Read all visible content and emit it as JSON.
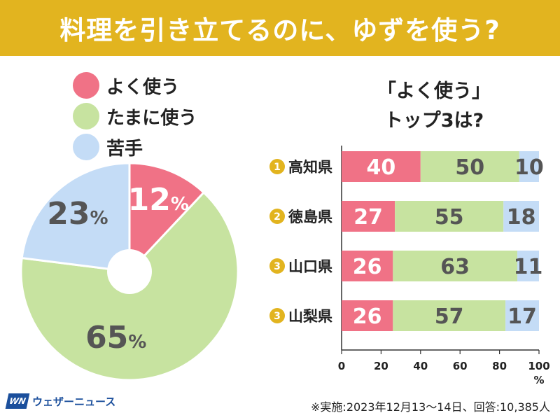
{
  "title": "料理を引き立てるのに、ゆずを使う?",
  "legend": [
    {
      "label": "よく使う",
      "color": "#f07286"
    },
    {
      "label": "たまに使う",
      "color": "#c7e3a0"
    },
    {
      "label": "苦手",
      "color": "#c4dcf6"
    }
  ],
  "subtitle_line1": "「よく使う」",
  "subtitle_line2": "トップ3は?",
  "footer": {
    "logo_mark": "WN",
    "logo_text": "ウェザーニュース",
    "note": "※実施:2023年12月13〜14日、回答:10,385人"
  },
  "chart_data": [
    {
      "type": "pie",
      "slices": [
        {
          "label": "よく使う",
          "value": 12,
          "color": "#f07286"
        },
        {
          "label": "たまに使う",
          "value": 65,
          "color": "#c7e3a0"
        },
        {
          "label": "苦手",
          "value": 23,
          "color": "#c4dcf6"
        }
      ],
      "value_suffix": "%"
    },
    {
      "type": "bar",
      "orientation": "horizontal",
      "stacked": true,
      "categories": [
        {
          "rank": "1",
          "name": "高知県"
        },
        {
          "rank": "2",
          "name": "徳島県"
        },
        {
          "rank": "3",
          "name": "山口県"
        },
        {
          "rank": "3",
          "name": "山梨県"
        }
      ],
      "series": [
        {
          "name": "よく使う",
          "color": "#f07286",
          "values": [
            40,
            27,
            26,
            26
          ]
        },
        {
          "name": "たまに使う",
          "color": "#c7e3a0",
          "values": [
            50,
            55,
            63,
            57
          ]
        },
        {
          "name": "苦手",
          "color": "#c4dcf6",
          "values": [
            10,
            18,
            11,
            17
          ]
        }
      ],
      "xlim": [
        0,
        100
      ],
      "xticks": [
        0,
        20,
        40,
        60,
        80,
        100
      ],
      "xunit": "%",
      "rank_badge_color": "#e2b41f"
    }
  ]
}
